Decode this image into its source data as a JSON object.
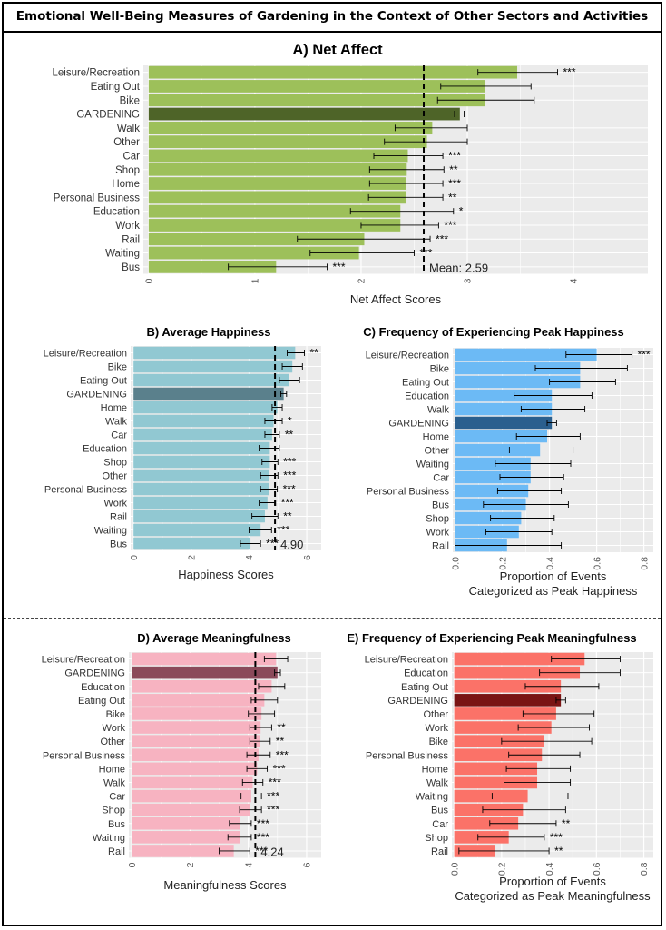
{
  "figure_title": "Emotional Well-Being Measures of Gardening in the Context of Other Sectors and Activities",
  "chart_data": [
    {
      "id": "A",
      "type": "bar",
      "orientation": "horizontal",
      "title": "A) Net Affect",
      "xlabel": "Net Affect Scores",
      "ylabel": "",
      "xlim": [
        -0.05,
        4.7
      ],
      "xticks": [
        0,
        1,
        2,
        3,
        4
      ],
      "mean": 2.59,
      "mean_label": "Mean: 2.59",
      "color": "#9dc05a",
      "highlight_color": "#4e6428",
      "highlight": "GARDENING",
      "rows": [
        {
          "label": "Leisure/Recreation",
          "value": 3.47,
          "err_low": 3.1,
          "err_high": 3.85,
          "sig": "***"
        },
        {
          "label": "Eating Out",
          "value": 3.17,
          "err_low": 2.75,
          "err_high": 3.6,
          "sig": ""
        },
        {
          "label": "Bike",
          "value": 3.17,
          "err_low": 2.72,
          "err_high": 3.63,
          "sig": ""
        },
        {
          "label": "GARDENING",
          "value": 2.93,
          "err_low": 2.88,
          "err_high": 2.97,
          "sig": ""
        },
        {
          "label": "Walk",
          "value": 2.67,
          "err_low": 2.32,
          "err_high": 3.0,
          "sig": ""
        },
        {
          "label": "Other",
          "value": 2.62,
          "err_low": 2.22,
          "err_high": 3.0,
          "sig": ""
        },
        {
          "label": "Car",
          "value": 2.44,
          "err_low": 2.12,
          "err_high": 2.77,
          "sig": "***"
        },
        {
          "label": "Shop",
          "value": 2.43,
          "err_low": 2.08,
          "err_high": 2.78,
          "sig": "**"
        },
        {
          "label": "Home",
          "value": 2.42,
          "err_low": 2.08,
          "err_high": 2.77,
          "sig": "***"
        },
        {
          "label": "Personal Business",
          "value": 2.42,
          "err_low": 2.07,
          "err_high": 2.77,
          "sig": "**"
        },
        {
          "label": "Education",
          "value": 2.37,
          "err_low": 1.9,
          "err_high": 2.87,
          "sig": "*"
        },
        {
          "label": "Work",
          "value": 2.37,
          "err_low": 2.0,
          "err_high": 2.73,
          "sig": "***"
        },
        {
          "label": "Rail",
          "value": 2.03,
          "err_low": 1.4,
          "err_high": 2.65,
          "sig": "***"
        },
        {
          "label": "Waiting",
          "value": 1.98,
          "err_low": 1.52,
          "err_high": 2.5,
          "sig": "***"
        },
        {
          "label": "Bus",
          "value": 1.2,
          "err_low": 0.75,
          "err_high": 1.68,
          "sig": "***"
        }
      ]
    },
    {
      "id": "B",
      "type": "bar",
      "orientation": "horizontal",
      "title": "B) Average Happiness",
      "xlabel": "Happiness Scores",
      "ylabel": "",
      "xlim": [
        -0.1,
        6.5
      ],
      "xticks": [
        0,
        2,
        4,
        6
      ],
      "mean": 4.9,
      "mean_label": "4.90",
      "color": "#91c8d2",
      "highlight_color": "#5a808c",
      "highlight": "GARDENING",
      "rows": [
        {
          "label": "Leisure/Recreation",
          "value": 5.6,
          "err_low": 5.32,
          "err_high": 5.92,
          "sig": "**"
        },
        {
          "label": "Bike",
          "value": 5.5,
          "err_low": 5.15,
          "err_high": 5.85,
          "sig": ""
        },
        {
          "label": "Eating Out",
          "value": 5.4,
          "err_low": 5.05,
          "err_high": 5.75,
          "sig": ""
        },
        {
          "label": "GARDENING",
          "value": 5.2,
          "err_low": 5.1,
          "err_high": 5.3,
          "sig": ""
        },
        {
          "label": "Home",
          "value": 4.98,
          "err_low": 4.8,
          "err_high": 5.15,
          "sig": ""
        },
        {
          "label": "Walk",
          "value": 4.85,
          "err_low": 4.55,
          "err_high": 5.15,
          "sig": "*"
        },
        {
          "label": "Car",
          "value": 4.8,
          "err_low": 4.55,
          "err_high": 5.05,
          "sig": "**"
        },
        {
          "label": "Education",
          "value": 4.72,
          "err_low": 4.35,
          "err_high": 5.05,
          "sig": ""
        },
        {
          "label": "Shop",
          "value": 4.72,
          "err_low": 4.45,
          "err_high": 5.0,
          "sig": "***"
        },
        {
          "label": "Other",
          "value": 4.7,
          "err_low": 4.4,
          "err_high": 5.0,
          "sig": "***"
        },
        {
          "label": "Personal Business",
          "value": 4.68,
          "err_low": 4.4,
          "err_high": 4.98,
          "sig": "***"
        },
        {
          "label": "Work",
          "value": 4.64,
          "err_low": 4.35,
          "err_high": 4.92,
          "sig": "***"
        },
        {
          "label": "Rail",
          "value": 4.55,
          "err_low": 4.1,
          "err_high": 5.0,
          "sig": "**"
        },
        {
          "label": "Waiting",
          "value": 4.4,
          "err_low": 4.0,
          "err_high": 4.78,
          "sig": "***"
        },
        {
          "label": "Bus",
          "value": 4.05,
          "err_low": 3.7,
          "err_high": 4.4,
          "sig": "***"
        }
      ]
    },
    {
      "id": "C",
      "type": "bar",
      "orientation": "horizontal",
      "title": "C) Frequency of Experiencing Peak Happiness",
      "xlabel": "Proportion of Events\nCategorized as Peak Happiness",
      "ylabel": "",
      "xlim": [
        -0.01,
        0.84
      ],
      "xticks": [
        0.0,
        0.2,
        0.4,
        0.6,
        0.8
      ],
      "color": "#6cbaf5",
      "highlight_color": "#2a5f8e",
      "highlight": "GARDENING",
      "rows": [
        {
          "label": "Leisure/Recreation",
          "value": 0.6,
          "err_low": 0.47,
          "err_high": 0.75,
          "sig": "***"
        },
        {
          "label": "Bike",
          "value": 0.53,
          "err_low": 0.34,
          "err_high": 0.73,
          "sig": ""
        },
        {
          "label": "Eating Out",
          "value": 0.53,
          "err_low": 0.4,
          "err_high": 0.68,
          "sig": ""
        },
        {
          "label": "Education",
          "value": 0.41,
          "err_low": 0.25,
          "err_high": 0.58,
          "sig": ""
        },
        {
          "label": "Walk",
          "value": 0.41,
          "err_low": 0.28,
          "err_high": 0.55,
          "sig": ""
        },
        {
          "label": "GARDENING",
          "value": 0.41,
          "err_low": 0.39,
          "err_high": 0.43,
          "sig": ""
        },
        {
          "label": "Home",
          "value": 0.39,
          "err_low": 0.26,
          "err_high": 0.53,
          "sig": ""
        },
        {
          "label": "Other",
          "value": 0.36,
          "err_low": 0.23,
          "err_high": 0.5,
          "sig": ""
        },
        {
          "label": "Waiting",
          "value": 0.32,
          "err_low": 0.17,
          "err_high": 0.49,
          "sig": ""
        },
        {
          "label": "Car",
          "value": 0.32,
          "err_low": 0.19,
          "err_high": 0.46,
          "sig": ""
        },
        {
          "label": "Personal Business",
          "value": 0.31,
          "err_low": 0.18,
          "err_high": 0.45,
          "sig": ""
        },
        {
          "label": "Bus",
          "value": 0.3,
          "err_low": 0.12,
          "err_high": 0.48,
          "sig": ""
        },
        {
          "label": "Shop",
          "value": 0.28,
          "err_low": 0.15,
          "err_high": 0.42,
          "sig": ""
        },
        {
          "label": "Work",
          "value": 0.27,
          "err_low": 0.13,
          "err_high": 0.41,
          "sig": ""
        },
        {
          "label": "Rail",
          "value": 0.22,
          "err_low": 0.0,
          "err_high": 0.45,
          "sig": ""
        }
      ]
    },
    {
      "id": "D",
      "type": "bar",
      "orientation": "horizontal",
      "title": "D) Average Meaningfulness",
      "xlabel": "Meaningfulness Scores",
      "ylabel": "",
      "xlim": [
        -0.1,
        6.5
      ],
      "xticks": [
        0,
        2,
        4,
        6
      ],
      "mean": 4.24,
      "mean_label": "4.24",
      "color": "#f7b3c1",
      "highlight_color": "#8b4a5a",
      "highlight": "GARDENING",
      "rows": [
        {
          "label": "Leisure/Recreation",
          "value": 4.95,
          "err_low": 4.55,
          "err_high": 5.35,
          "sig": ""
        },
        {
          "label": "GARDENING",
          "value": 5.0,
          "err_low": 4.9,
          "err_high": 5.1,
          "sig": ""
        },
        {
          "label": "Education",
          "value": 4.8,
          "err_low": 4.35,
          "err_high": 5.25,
          "sig": ""
        },
        {
          "label": "Eating Out",
          "value": 4.55,
          "err_low": 4.1,
          "err_high": 5.0,
          "sig": ""
        },
        {
          "label": "Bike",
          "value": 4.45,
          "err_low": 4.0,
          "err_high": 4.9,
          "sig": ""
        },
        {
          "label": "Work",
          "value": 4.42,
          "err_low": 4.05,
          "err_high": 4.8,
          "sig": "**"
        },
        {
          "label": "Other",
          "value": 4.4,
          "err_low": 4.05,
          "err_high": 4.75,
          "sig": "**"
        },
        {
          "label": "Personal Business",
          "value": 4.35,
          "err_low": 3.95,
          "err_high": 4.75,
          "sig": "***"
        },
        {
          "label": "Home",
          "value": 4.3,
          "err_low": 3.95,
          "err_high": 4.65,
          "sig": "***"
        },
        {
          "label": "Walk",
          "value": 4.15,
          "err_low": 3.8,
          "err_high": 4.5,
          "sig": "***"
        },
        {
          "label": "Car",
          "value": 4.1,
          "err_low": 3.75,
          "err_high": 4.45,
          "sig": "***"
        },
        {
          "label": "Shop",
          "value": 4.05,
          "err_low": 3.7,
          "err_high": 4.45,
          "sig": "***"
        },
        {
          "label": "Bus",
          "value": 3.7,
          "err_low": 3.35,
          "err_high": 4.1,
          "sig": "***"
        },
        {
          "label": "Waiting",
          "value": 3.7,
          "err_low": 3.3,
          "err_high": 4.1,
          "sig": "***"
        },
        {
          "label": "Rail",
          "value": 3.5,
          "err_low": 3.0,
          "err_high": 4.05,
          "sig": "***"
        }
      ]
    },
    {
      "id": "E",
      "type": "bar",
      "orientation": "horizontal",
      "title": "E) Frequency of Experiencing Peak Meaningfulness",
      "xlabel": "Proportion of Events\nCategorized as Peak Meaningfulness",
      "ylabel": "",
      "xlim": [
        -0.01,
        0.84
      ],
      "xticks": [
        0.0,
        0.2,
        0.4,
        0.6,
        0.8
      ],
      "color": "#fb7268",
      "highlight_color": "#7a1414",
      "highlight": "GARDENING",
      "rows": [
        {
          "label": "Leisure/Recreation",
          "value": 0.55,
          "err_low": 0.41,
          "err_high": 0.7,
          "sig": ""
        },
        {
          "label": "Education",
          "value": 0.53,
          "err_low": 0.36,
          "err_high": 0.7,
          "sig": ""
        },
        {
          "label": "Eating Out",
          "value": 0.45,
          "err_low": 0.3,
          "err_high": 0.61,
          "sig": ""
        },
        {
          "label": "GARDENING",
          "value": 0.45,
          "err_low": 0.43,
          "err_high": 0.47,
          "sig": ""
        },
        {
          "label": "Other",
          "value": 0.43,
          "err_low": 0.29,
          "err_high": 0.59,
          "sig": ""
        },
        {
          "label": "Work",
          "value": 0.41,
          "err_low": 0.27,
          "err_high": 0.57,
          "sig": ""
        },
        {
          "label": "Bike",
          "value": 0.38,
          "err_low": 0.2,
          "err_high": 0.58,
          "sig": ""
        },
        {
          "label": "Personal Business",
          "value": 0.37,
          "err_low": 0.23,
          "err_high": 0.53,
          "sig": ""
        },
        {
          "label": "Home",
          "value": 0.35,
          "err_low": 0.22,
          "err_high": 0.49,
          "sig": ""
        },
        {
          "label": "Walk",
          "value": 0.35,
          "err_low": 0.21,
          "err_high": 0.49,
          "sig": ""
        },
        {
          "label": "Waiting",
          "value": 0.31,
          "err_low": 0.16,
          "err_high": 0.48,
          "sig": ""
        },
        {
          "label": "Bus",
          "value": 0.29,
          "err_low": 0.12,
          "err_high": 0.47,
          "sig": ""
        },
        {
          "label": "Car",
          "value": 0.27,
          "err_low": 0.15,
          "err_high": 0.43,
          "sig": "**"
        },
        {
          "label": "Shop",
          "value": 0.23,
          "err_low": 0.1,
          "err_high": 0.38,
          "sig": "***"
        },
        {
          "label": "Rail",
          "value": 0.17,
          "err_low": 0.02,
          "err_high": 0.4,
          "sig": "**"
        }
      ]
    }
  ]
}
